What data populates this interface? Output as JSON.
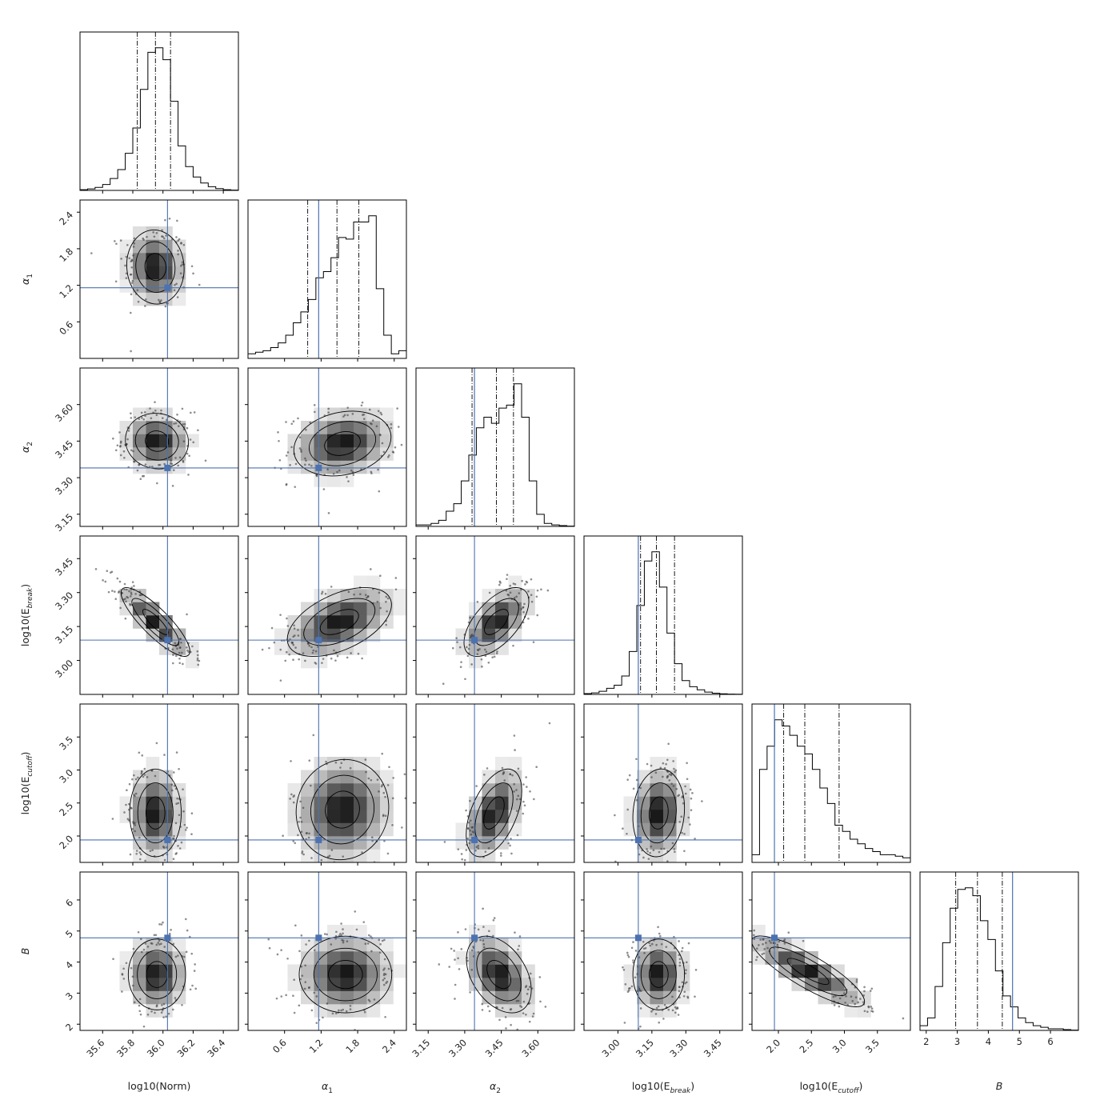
{
  "chart_data": {
    "type": "corner",
    "parameters": [
      {
        "key": "norm",
        "label_main": "log10(Norm)",
        "label_sub": "",
        "ticks": [
          35.6,
          35.8,
          36.0,
          36.2,
          36.4
        ],
        "tick_labels": [
          "35.6",
          "35.8",
          "36.0",
          "36.2",
          "36.4"
        ],
        "range": [
          35.45,
          36.5
        ],
        "quantiles": [
          35.83,
          35.95,
          36.05
        ],
        "truth": 36.03,
        "hist": [
          0.005,
          0.01,
          0.02,
          0.04,
          0.08,
          0.14,
          0.25,
          0.42,
          0.68,
          0.93,
          0.96,
          0.88,
          0.6,
          0.3,
          0.16,
          0.09,
          0.05,
          0.025,
          0.012,
          0.005,
          0.002
        ]
      },
      {
        "key": "a1",
        "label_main": "α",
        "label_sub": "1",
        "ticks": [
          0.6,
          1.2,
          1.8,
          2.4
        ],
        "tick_labels": [
          "0.6",
          "1.2",
          "1.8",
          "2.4"
        ],
        "range": [
          0.0,
          2.6
        ],
        "quantiles": [
          0.98,
          1.46,
          1.82
        ],
        "truth": 1.16,
        "hist": [
          0.03,
          0.04,
          0.05,
          0.07,
          0.1,
          0.15,
          0.23,
          0.3,
          0.38,
          0.52,
          0.56,
          0.65,
          0.78,
          0.77,
          0.88,
          0.88,
          0.92,
          0.45,
          0.15,
          0.03,
          0.05
        ]
      },
      {
        "key": "a2",
        "label_main": "α",
        "label_sub": "2",
        "ticks": [
          3.15,
          3.3,
          3.45,
          3.6
        ],
        "tick_labels": [
          "3.15",
          "3.30",
          "3.45",
          "3.60"
        ],
        "range": [
          3.1,
          3.75
        ],
        "quantiles": [
          3.33,
          3.43,
          3.5
        ],
        "truth": 3.34,
        "hist": [
          0.01,
          0.01,
          0.02,
          0.04,
          0.1,
          0.15,
          0.3,
          0.47,
          0.65,
          0.72,
          0.68,
          0.78,
          0.8,
          0.94,
          0.72,
          0.3,
          0.08,
          0.02,
          0.01,
          0.005,
          0.002
        ]
      },
      {
        "key": "eb",
        "label_main": "log10(E",
        "label_sub": "break",
        "label_tail": ")",
        "ticks": [
          3.0,
          3.15,
          3.3,
          3.45
        ],
        "tick_labels": [
          "3.00",
          "3.15",
          "3.30",
          "3.45"
        ],
        "range": [
          2.85,
          3.55
        ],
        "quantiles": [
          3.1,
          3.17,
          3.25
        ],
        "truth": 3.09,
        "hist": [
          0.005,
          0.01,
          0.02,
          0.04,
          0.06,
          0.12,
          0.28,
          0.58,
          0.87,
          0.93,
          0.7,
          0.4,
          0.2,
          0.09,
          0.05,
          0.03,
          0.015,
          0.008,
          0.004,
          0.002,
          0.001
        ]
      },
      {
        "key": "ec",
        "label_main": "log10(E",
        "label_sub": "cutoff",
        "label_tail": ")",
        "ticks": [
          2.0,
          2.5,
          3.0,
          3.5
        ],
        "tick_labels": [
          "2.0",
          "2.5",
          "3.0",
          "3.5"
        ],
        "range": [
          1.6,
          4.0
        ],
        "quantiles": [
          1.96,
          2.08,
          2.4,
          2.92
        ],
        "quantile_indices": [
          1,
          2,
          3
        ],
        "truth": 1.94,
        "hist": [
          0.05,
          0.6,
          0.75,
          0.92,
          0.88,
          0.82,
          0.75,
          0.7,
          0.6,
          0.48,
          0.38,
          0.24,
          0.2,
          0.15,
          0.12,
          0.09,
          0.07,
          0.05,
          0.05,
          0.04,
          0.03
        ]
      },
      {
        "key": "b",
        "label_main": "B",
        "label_sub": "",
        "ticks": [
          2,
          3,
          4,
          5,
          6
        ],
        "tick_labels": [
          "2",
          "3",
          "4",
          "5",
          "6"
        ],
        "range": [
          1.8,
          6.9
        ],
        "quantiles": [
          2.95,
          3.65,
          4.45
        ],
        "truth": 4.78,
        "hist": [
          0.03,
          0.08,
          0.28,
          0.56,
          0.78,
          0.9,
          0.91,
          0.86,
          0.7,
          0.58,
          0.38,
          0.22,
          0.15,
          0.08,
          0.05,
          0.03,
          0.02,
          0.01,
          0.01,
          0.005,
          0.002
        ]
      }
    ],
    "pairs": [
      {
        "x": "norm",
        "y": "a1",
        "mean": [
          35.95,
          1.5
        ],
        "sd": [
          0.1,
          0.32
        ],
        "rho": -0.05
      },
      {
        "x": "norm",
        "y": "a2",
        "mean": [
          35.96,
          3.45
        ],
        "sd": [
          0.11,
          0.06
        ],
        "rho": -0.05
      },
      {
        "x": "a1",
        "y": "a2",
        "mean": [
          1.55,
          3.44
        ],
        "sd": [
          0.42,
          0.07
        ],
        "rho": 0.2
      },
      {
        "x": "norm",
        "y": "eb",
        "mean": [
          35.95,
          3.17
        ],
        "sd": [
          0.12,
          0.08
        ],
        "rho": -0.85
      },
      {
        "x": "a1",
        "y": "eb",
        "mean": [
          1.5,
          3.17
        ],
        "sd": [
          0.45,
          0.08
        ],
        "rho": 0.5
      },
      {
        "x": "a2",
        "y": "eb",
        "mean": [
          3.43,
          3.17
        ],
        "sd": [
          0.07,
          0.08
        ],
        "rho": 0.6
      },
      {
        "x": "norm",
        "y": "ec",
        "mean": [
          35.95,
          2.35
        ],
        "sd": [
          0.09,
          0.35
        ],
        "rho": 0.0
      },
      {
        "x": "a1",
        "y": "ec",
        "mean": [
          1.55,
          2.4
        ],
        "sd": [
          0.4,
          0.4
        ],
        "rho": 0.05
      },
      {
        "x": "a2",
        "y": "ec",
        "mean": [
          3.42,
          2.35
        ],
        "sd": [
          0.06,
          0.35
        ],
        "rho": 0.5
      },
      {
        "x": "eb",
        "y": "ec",
        "mean": [
          3.18,
          2.35
        ],
        "sd": [
          0.06,
          0.35
        ],
        "rho": 0.1
      },
      {
        "x": "norm",
        "y": "b",
        "mean": [
          35.96,
          3.6
        ],
        "sd": [
          0.1,
          0.6
        ],
        "rho": 0.0
      },
      {
        "x": "a1",
        "y": "b",
        "mean": [
          1.6,
          3.6
        ],
        "sd": [
          0.4,
          0.65
        ],
        "rho": 0.0
      },
      {
        "x": "a2",
        "y": "b",
        "mean": [
          3.44,
          3.6
        ],
        "sd": [
          0.07,
          0.65
        ],
        "rho": -0.4
      },
      {
        "x": "eb",
        "y": "b",
        "mean": [
          3.18,
          3.6
        ],
        "sd": [
          0.06,
          0.6
        ],
        "rho": 0.0
      },
      {
        "x": "ec",
        "y": "b",
        "mean": [
          2.45,
          3.7
        ],
        "sd": [
          0.45,
          0.6
        ],
        "rho": -0.85
      }
    ],
    "truth_color": "#4c72b0",
    "line_color": "#000000"
  }
}
